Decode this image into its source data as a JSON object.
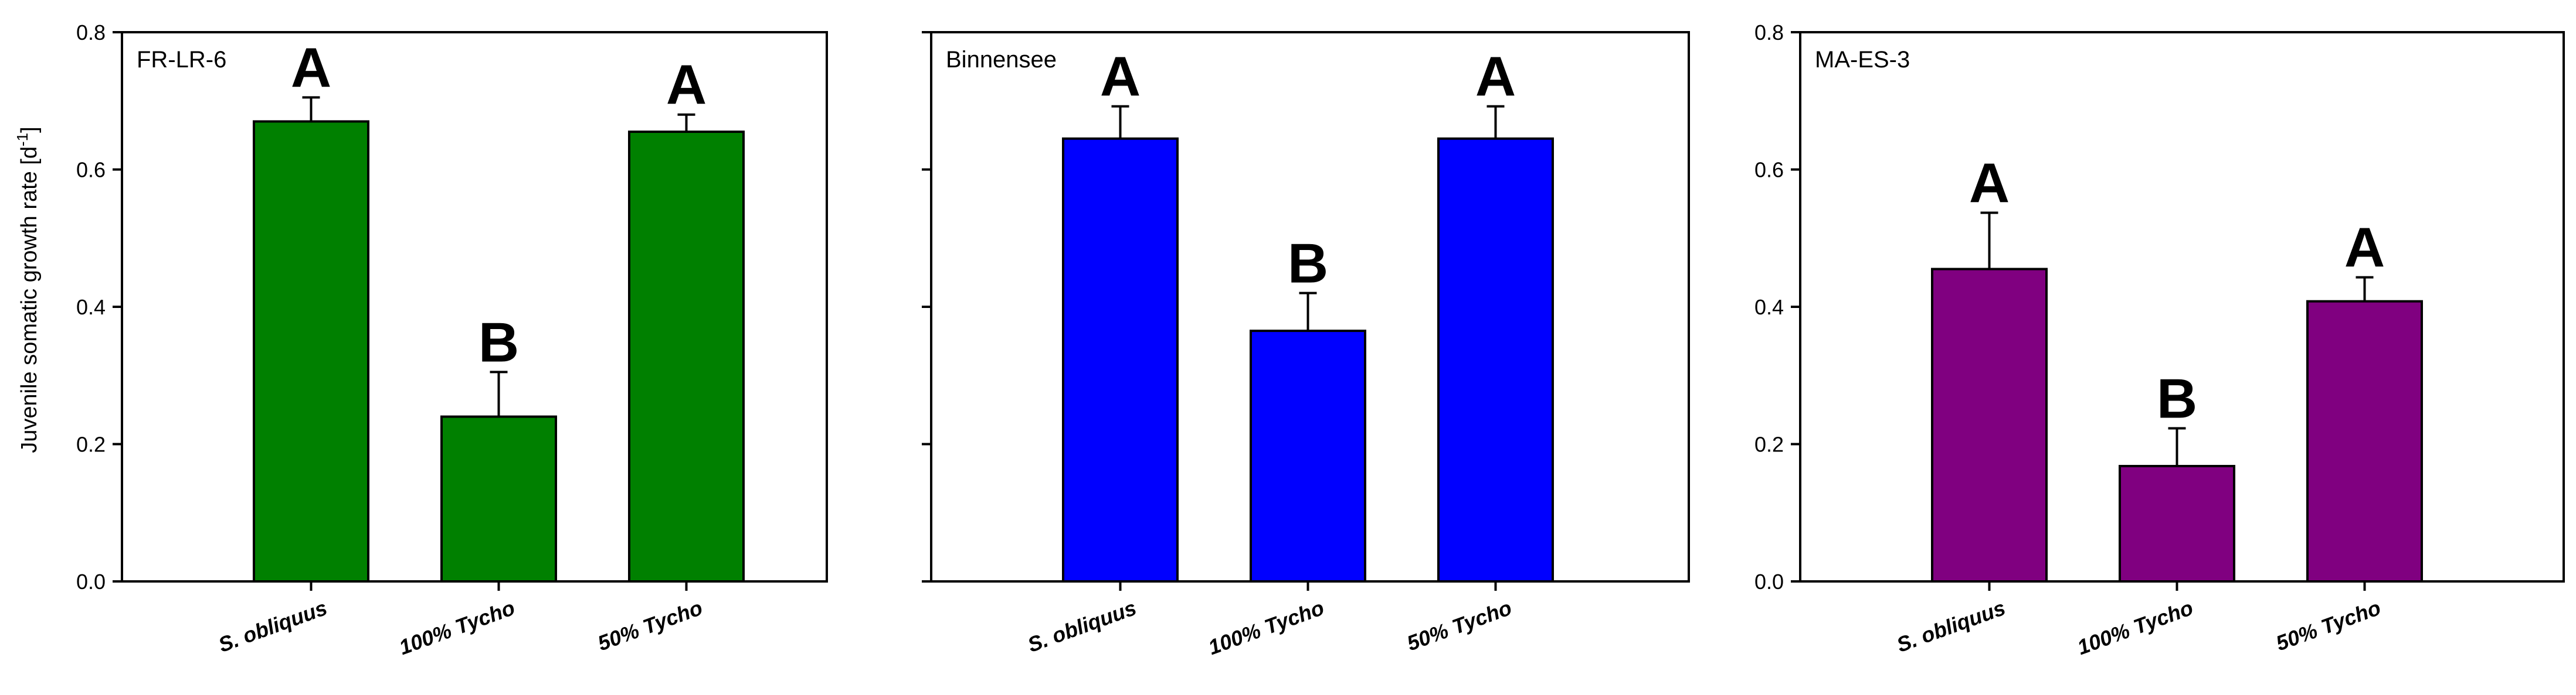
{
  "ylabel": "Juvenile somatic growth rate [d",
  "ylabel_sup": "-1",
  "ylabel_end": "]",
  "yticks": [
    "0.0",
    "0.2",
    "0.4",
    "0.6",
    "0.8"
  ],
  "chart_data": [
    {
      "type": "bar",
      "title": "FR-LR-6",
      "color": "#008000",
      "categories": [
        "S. obliquus",
        "100% Tycho",
        "50% Tycho"
      ],
      "values": [
        0.67,
        0.24,
        0.655
      ],
      "errors": [
        0.035,
        0.065,
        0.025
      ],
      "significance": [
        "A",
        "B",
        "A"
      ],
      "ylabel": "Juvenile somatic growth rate [d-1]",
      "ylim": [
        0,
        0.8
      ],
      "yticks": [
        0,
        0.2,
        0.4,
        0.6,
        0.8
      ],
      "show_tick_labels": true
    },
    {
      "type": "bar",
      "title": "Binnensee",
      "color": "#0000ff",
      "categories": [
        "S. obliquus",
        "100% Tycho",
        "50% Tycho"
      ],
      "values": [
        0.645,
        0.365,
        0.645
      ],
      "errors": [
        0.047,
        0.055,
        0.047
      ],
      "significance": [
        "A",
        "B",
        "A"
      ],
      "ylim": [
        0,
        0.8
      ],
      "yticks": [
        0,
        0.2,
        0.4,
        0.6,
        0.8
      ],
      "show_tick_labels": false
    },
    {
      "type": "bar",
      "title": "MA-ES-3",
      "color": "#800080",
      "categories": [
        "S. obliquus",
        "100% Tycho",
        "50% Tycho"
      ],
      "values": [
        0.455,
        0.168,
        0.408
      ],
      "errors": [
        0.082,
        0.055,
        0.035
      ],
      "significance": [
        "A",
        "B",
        "A"
      ],
      "ylim": [
        0,
        0.8
      ],
      "yticks": [
        0,
        0.2,
        0.4,
        0.6,
        0.8
      ],
      "show_tick_labels": true
    }
  ]
}
